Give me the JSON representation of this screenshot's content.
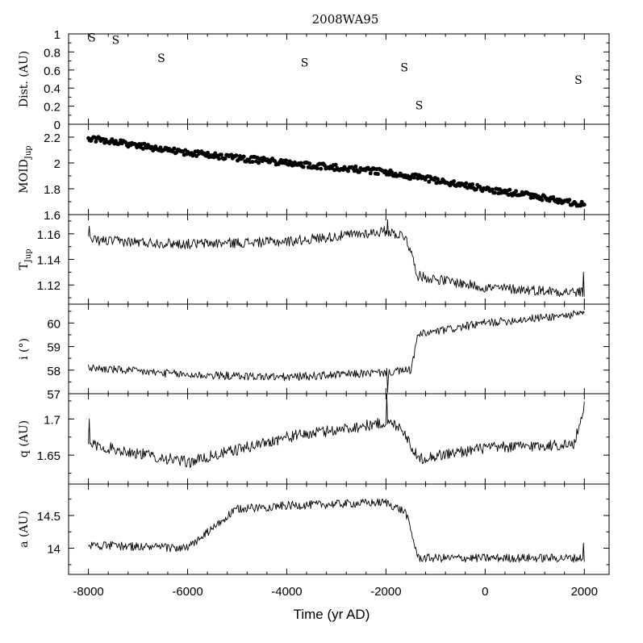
{
  "chart_data": {
    "type": "line",
    "title": "2008WA95",
    "xlabel": "Time (yr AD)",
    "xlim": [
      -8400,
      2500
    ],
    "xticks": [
      -8000,
      -6000,
      -4000,
      -2000,
      0,
      2000
    ],
    "xtick_labels": [
      "-8000",
      "-6000",
      "-4000",
      "-2000",
      "0",
      "2000"
    ],
    "panels": [
      {
        "id": "dist",
        "ylabel": "Dist. (AU)",
        "ylim": [
          0,
          1
        ],
        "yticks": [
          0,
          0.2,
          0.4,
          0.6,
          0.8,
          1
        ],
        "ytick_labels": [
          "0",
          "0.2",
          "0.4",
          "0.6",
          "0.8",
          "1"
        ],
        "type": "text-markers",
        "marker_text": "S",
        "points": [
          {
            "x": -7930,
            "y": 0.97
          },
          {
            "x": -7450,
            "y": 0.94
          },
          {
            "x": -6530,
            "y": 0.74
          },
          {
            "x": -3640,
            "y": 0.69
          },
          {
            "x": -1630,
            "y": 0.64
          },
          {
            "x": -1330,
            "y": 0.22
          },
          {
            "x": 1880,
            "y": 0.5
          }
        ]
      },
      {
        "id": "moid",
        "ylabel": "MOID",
        "ylabel_sub": "Jup",
        "ylim": [
          1.6,
          2.3
        ],
        "yticks": [
          1.6,
          1.8,
          2.0,
          2.2
        ],
        "ytick_labels": [
          "1.6",
          "1.8",
          "2",
          "2.2"
        ],
        "type": "scatter",
        "series": [
          {
            "keypoints": [
              [
                -8000,
                2.19
              ],
              [
                -6000,
                2.08
              ],
              [
                -4000,
                2.0
              ],
              [
                -2000,
                1.93
              ],
              [
                0,
                1.8
              ],
              [
                2000,
                1.68
              ]
            ],
            "noise": 0.022,
            "count": 400
          }
        ]
      },
      {
        "id": "tjup",
        "ylabel": "T",
        "ylabel_sub": "Jup",
        "ylim": [
          1.105,
          1.175
        ],
        "yticks": [
          1.12,
          1.14,
          1.16
        ],
        "ytick_labels": [
          "1.12",
          "1.14",
          "1.16"
        ],
        "type": "line",
        "series": [
          {
            "keypoints": [
              [
                -8000,
                1.155
              ],
              [
                -6000,
                1.152
              ],
              [
                -4000,
                1.154
              ],
              [
                -2000,
                1.162
              ],
              [
                -1600,
                1.158
              ],
              [
                -1350,
                1.127
              ],
              [
                0,
                1.118
              ],
              [
                2000,
                1.114
              ]
            ],
            "noise": 0.008,
            "spikes": [
              [
                -7990,
                1.166
              ],
              [
                -1960,
                1.171
              ],
              [
                1990,
                1.13
              ]
            ]
          }
        ]
      },
      {
        "id": "incl",
        "ylabel": "i (°)",
        "ylim": [
          57,
          60.8
        ],
        "yticks": [
          57,
          58,
          59,
          60
        ],
        "ytick_labels": [
          "57",
          "58",
          "59",
          "60"
        ],
        "type": "line",
        "series": [
          {
            "keypoints": [
              [
                -8000,
                58.1
              ],
              [
                -6000,
                57.8
              ],
              [
                -4000,
                57.7
              ],
              [
                -2000,
                57.9
              ],
              [
                -1500,
                58.0
              ],
              [
                -1350,
                59.5
              ],
              [
                0,
                60.0
              ],
              [
                2000,
                60.4
              ]
            ],
            "noise": 0.35,
            "spikes": [
              [
                -1970,
                57.05
              ]
            ]
          }
        ]
      },
      {
        "id": "q",
        "ylabel": "q (AU)",
        "ylim": [
          1.61,
          1.735
        ],
        "yticks": [
          1.65,
          1.7
        ],
        "ytick_labels": [
          "1.65",
          "1.7"
        ],
        "type": "line",
        "series": [
          {
            "keypoints": [
              [
                -8000,
                1.665
              ],
              [
                -6000,
                1.64
              ],
              [
                -4000,
                1.675
              ],
              [
                -2000,
                1.695
              ],
              [
                -1700,
                1.69
              ],
              [
                -1350,
                1.645
              ],
              [
                0,
                1.66
              ],
              [
                1800,
                1.665
              ],
              [
                2000,
                1.72
              ]
            ],
            "noise": 0.016,
            "spikes": [
              [
                -7990,
                1.7
              ],
              [
                -1990,
                1.735
              ]
            ]
          }
        ]
      },
      {
        "id": "a",
        "ylabel": "a (AU)",
        "ylim": [
          13.6,
          14.98
        ],
        "yticks": [
          14,
          14.5
        ],
        "ytick_labels": [
          "14",
          "14.5"
        ],
        "type": "line",
        "series": [
          {
            "keypoints": [
              [
                -8000,
                14.05
              ],
              [
                -6000,
                14.0
              ],
              [
                -5000,
                14.6
              ],
              [
                -4000,
                14.65
              ],
              [
                -2000,
                14.7
              ],
              [
                -1600,
                14.55
              ],
              [
                -1350,
                13.85
              ],
              [
                0,
                13.85
              ],
              [
                2000,
                13.85
              ]
            ],
            "noise": 0.13,
            "spikes": [
              [
                1990,
                14.08
              ]
            ]
          }
        ]
      }
    ]
  }
}
